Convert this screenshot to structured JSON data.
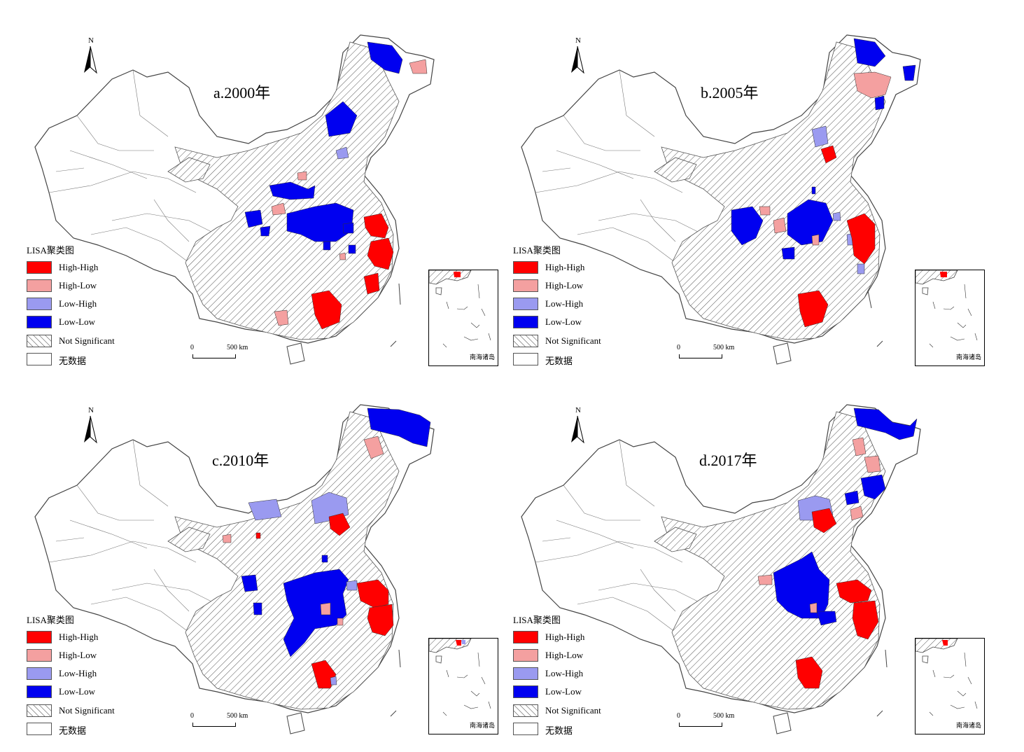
{
  "map_title": "",
  "legend": {
    "title": "LISA聚类图",
    "items": [
      {
        "label": "High-High",
        "color": "#ff0000",
        "pattern": "solid"
      },
      {
        "label": "High-Low",
        "color": "#f4a0a0",
        "pattern": "solid"
      },
      {
        "label": "Low-High",
        "color": "#9a9af0",
        "pattern": "solid"
      },
      {
        "label": "Low-Low",
        "color": "#0000f0",
        "pattern": "solid"
      },
      {
        "label": "Not Significant",
        "color": "#ffffff",
        "pattern": "hatch"
      },
      {
        "label": "无数据",
        "color": "#ffffff",
        "pattern": "solid"
      }
    ]
  },
  "north_arrow": {
    "label": "N"
  },
  "scale_bar": {
    "zero": "0",
    "distance": "500 km"
  },
  "inset": {
    "label": "南海诸岛"
  },
  "panels": [
    {
      "id": "a",
      "title": "a.2000年"
    },
    {
      "id": "b",
      "title": "b.2005年"
    },
    {
      "id": "c",
      "title": "c.2010年"
    },
    {
      "id": "d",
      "title": "d.2017年"
    }
  ]
}
